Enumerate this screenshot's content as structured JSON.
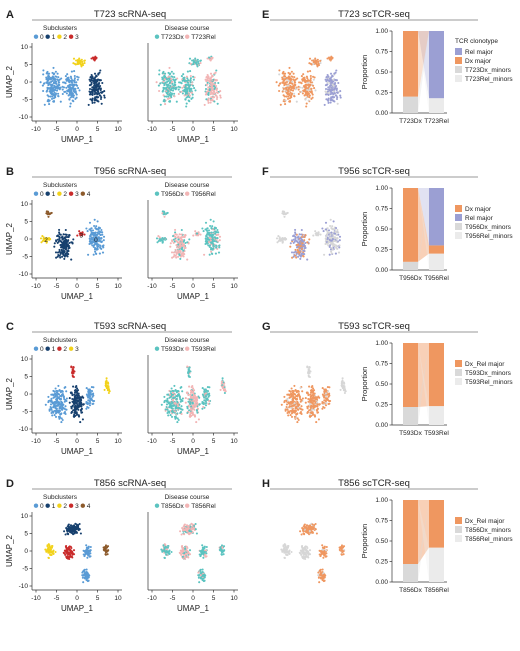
{
  "panels": [
    {
      "scRNA": {
        "letter": "A",
        "title": "T723 scRNA-seq",
        "sub_title": "Subclusters",
        "sub_labels": [
          "0",
          "1",
          "2",
          "3"
        ],
        "sub_colors": [
          "#5a9bd5",
          "#17406e",
          "#f2d21a",
          "#c92b2b"
        ],
        "dc_title": "Disease course",
        "dc_labels": [
          "T723Dx",
          "T723Rel"
        ],
        "dc_colors": [
          "#5bc3c0",
          "#f2b5b5"
        ],
        "cluster_numbers": []
      },
      "scTCR": {
        "letter": "E",
        "title": "T723 scTCR-seq",
        "legend_title": "TCR clonotype",
        "legend": [
          "Rel major",
          "Dx major",
          "T723Dx_minors",
          "T723Rel_minors"
        ],
        "legend_colors": [
          "#9b9fd3",
          "#ef9760",
          "#d9d9d9",
          "#ebebeb"
        ],
        "bar_labels": [
          "T723Dx",
          "T723Rel"
        ]
      }
    },
    {
      "scRNA": {
        "letter": "B",
        "title": "T956 scRNA-seq",
        "sub_title": "Subclusters",
        "sub_labels": [
          "0",
          "1",
          "2",
          "3",
          "4"
        ],
        "sub_colors": [
          "#5a9bd5",
          "#17406e",
          "#f2d21a",
          "#c92b2b",
          "#8c5a2b"
        ],
        "dc_title": "Disease course",
        "dc_labels": [
          "T956Dx",
          "T956Rel"
        ],
        "dc_colors": [
          "#5bc3c0",
          "#f2b5b5"
        ],
        "cluster_numbers": [
          "2",
          "3",
          "0"
        ]
      },
      "scTCR": {
        "letter": "F",
        "title": "T956 scTCR-seq",
        "legend_title": "",
        "legend": [
          "Dx major",
          "Rel major",
          "T956Dx_minors",
          "T956Rel_minors"
        ],
        "legend_colors": [
          "#ef9760",
          "#9b9fd3",
          "#d9d9d9",
          "#ebebeb"
        ],
        "bar_labels": [
          "T956Dx",
          "T956Rel"
        ]
      }
    },
    {
      "scRNA": {
        "letter": "C",
        "title": "T593 scRNA-seq",
        "sub_title": "Subclusters",
        "sub_labels": [
          "0",
          "1",
          "2",
          "3"
        ],
        "sub_colors": [
          "#5a9bd5",
          "#17406e",
          "#c92b2b",
          "#f2d21a"
        ],
        "dc_title": "Disease course",
        "dc_labels": [
          "T593Dx",
          "T593Rel"
        ],
        "dc_colors": [
          "#5bc3c0",
          "#f2b5b5"
        ],
        "cluster_numbers": []
      },
      "scTCR": {
        "letter": "G",
        "title": "T593 scTCR-seq",
        "legend_title": "",
        "legend": [
          "Dx_Rel major",
          "T593Dx_minors",
          "T593Rel_minors"
        ],
        "legend_colors": [
          "#ef9760",
          "#d9d9d9",
          "#ebebeb"
        ],
        "bar_labels": [
          "T593Dx",
          "T593Rel"
        ]
      }
    },
    {
      "scRNA": {
        "letter": "D",
        "title": "T856 scRNA-seq",
        "sub_title": "Subclusters",
        "sub_labels": [
          "0",
          "1",
          "2",
          "3",
          "4"
        ],
        "sub_colors": [
          "#5a9bd5",
          "#17406e",
          "#f2d21a",
          "#c92b2b",
          "#8c5a2b"
        ],
        "dc_title": "Disease course",
        "dc_labels": [
          "T856Dx",
          "T856Rel"
        ],
        "dc_colors": [
          "#5bc3c0",
          "#f2b5b5"
        ],
        "cluster_numbers": []
      },
      "scTCR": {
        "letter": "H",
        "title": "T856 scTCR-seq",
        "legend_title": "",
        "legend": [
          "Dx_Rel major",
          "T856Dx_minors",
          "T856Rel_minors"
        ],
        "legend_colors": [
          "#ef9760",
          "#d9d9d9",
          "#ebebeb"
        ],
        "bar_labels": [
          "T856Dx",
          "T856Rel"
        ]
      }
    }
  ],
  "umap_axes": {
    "xlabel": "UMAP_1",
    "ylabel": "UMAP_2",
    "xticks": [
      "-10",
      "-5",
      "0",
      "5",
      "10"
    ],
    "yticks": [
      "-10",
      "-5",
      "0",
      "5",
      "10"
    ]
  },
  "chart_data": [
    {
      "type": "bar",
      "stacked": true,
      "title": "T723 scTCR-seq",
      "ylabel": "Proportion",
      "categories": [
        "T723Dx",
        "T723Rel"
      ],
      "ylim": [
        0,
        1
      ],
      "yticks": [
        "0.00",
        "0.25",
        "0.50",
        "0.75",
        "1.00"
      ],
      "series": [
        {
          "name": "Rel major",
          "color": "#9b9fd3",
          "values": [
            0.0,
            0.82
          ]
        },
        {
          "name": "Dx major",
          "color": "#ef9760",
          "values": [
            0.8,
            0.0
          ]
        },
        {
          "name": "T723Dx_minors",
          "color": "#d9d9d9",
          "values": [
            0.2,
            0.0
          ]
        },
        {
          "name": "T723Rel_minors",
          "color": "#ebebeb",
          "values": [
            0.0,
            0.18
          ]
        }
      ]
    },
    {
      "type": "bar",
      "stacked": true,
      "title": "T956 scTCR-seq",
      "ylabel": "Proportion",
      "categories": [
        "T956Dx",
        "T956Rel"
      ],
      "ylim": [
        0,
        1
      ],
      "yticks": [
        "0.00",
        "0.25",
        "0.50",
        "0.75",
        "1.00"
      ],
      "series": [
        {
          "name": "Dx major",
          "color": "#ef9760",
          "values": [
            0.9,
            0.1
          ]
        },
        {
          "name": "Rel major",
          "color": "#9b9fd3",
          "values": [
            0.0,
            0.7
          ]
        },
        {
          "name": "T956Dx_minors",
          "color": "#d9d9d9",
          "values": [
            0.1,
            0.0
          ]
        },
        {
          "name": "T956Rel_minors",
          "color": "#ebebeb",
          "values": [
            0.0,
            0.2
          ]
        }
      ]
    },
    {
      "type": "bar",
      "stacked": true,
      "title": "T593 scTCR-seq",
      "ylabel": "Proportion",
      "categories": [
        "T593Dx",
        "T593Rel"
      ],
      "ylim": [
        0,
        1
      ],
      "yticks": [
        "0.00",
        "0.25",
        "0.50",
        "0.75",
        "1.00"
      ],
      "series": [
        {
          "name": "Dx_Rel major",
          "color": "#ef9760",
          "values": [
            0.78,
            0.77
          ]
        },
        {
          "name": "T593Dx_minors",
          "color": "#d9d9d9",
          "values": [
            0.22,
            0.0
          ]
        },
        {
          "name": "T593Rel_minors",
          "color": "#ebebeb",
          "values": [
            0.0,
            0.23
          ]
        }
      ]
    },
    {
      "type": "bar",
      "stacked": true,
      "title": "T856 scTCR-seq",
      "ylabel": "Proportion",
      "categories": [
        "T856Dx",
        "T856Rel"
      ],
      "ylim": [
        0,
        1
      ],
      "yticks": [
        "0.00",
        "0.25",
        "0.50",
        "0.75",
        "1.00"
      ],
      "series": [
        {
          "name": "Dx_Rel major",
          "color": "#ef9760",
          "values": [
            0.78,
            0.58
          ]
        },
        {
          "name": "T856Dx_minors",
          "color": "#d9d9d9",
          "values": [
            0.22,
            0.0
          ]
        },
        {
          "name": "T856Rel_minors",
          "color": "#ebebeb",
          "values": [
            0.0,
            0.42
          ]
        }
      ]
    }
  ]
}
